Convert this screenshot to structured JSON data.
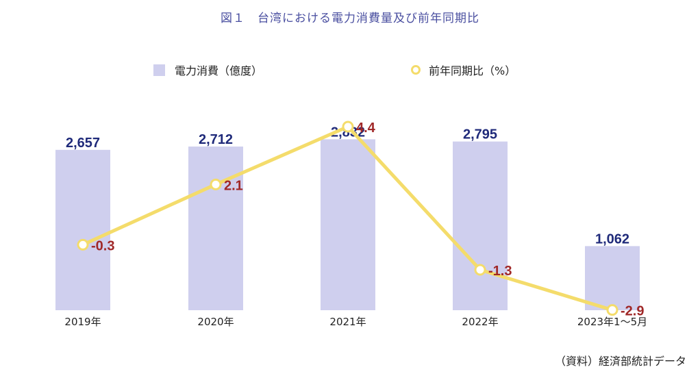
{
  "title": "図１　台湾における電力消費量及び前年同期比",
  "legend": {
    "bar_label": "電力消費（億度）",
    "line_label": "前年同期比（%）"
  },
  "source": "（資料）経済部統計データ",
  "chart_data": {
    "type": "bar",
    "categories": [
      "2019年",
      "2020年",
      "2021年",
      "2022年",
      "2023年1～5月"
    ],
    "series": [
      {
        "name": "電力消費（億度）",
        "type": "bar",
        "values": [
          2657,
          2712,
          2832,
          2795,
          1062
        ],
        "labels": [
          "2,657",
          "2,712",
          "2,832",
          "2,795",
          "1,062"
        ],
        "color": "#cfcfee",
        "label_color": "#1f2a7a"
      },
      {
        "name": "前年同期比（%）",
        "type": "line",
        "values": [
          -0.3,
          2.1,
          4.4,
          -1.3,
          -2.9
        ],
        "labels": [
          "-0.3",
          "2.1",
          "4.4",
          "-1.3",
          "-2.9"
        ],
        "color": "#f4dc6b",
        "label_color": "#a02828"
      }
    ],
    "bar_ylim": [
      0,
      2950
    ],
    "line_ylim": [
      -4,
      5
    ],
    "grid": false,
    "legend_position": "top"
  }
}
